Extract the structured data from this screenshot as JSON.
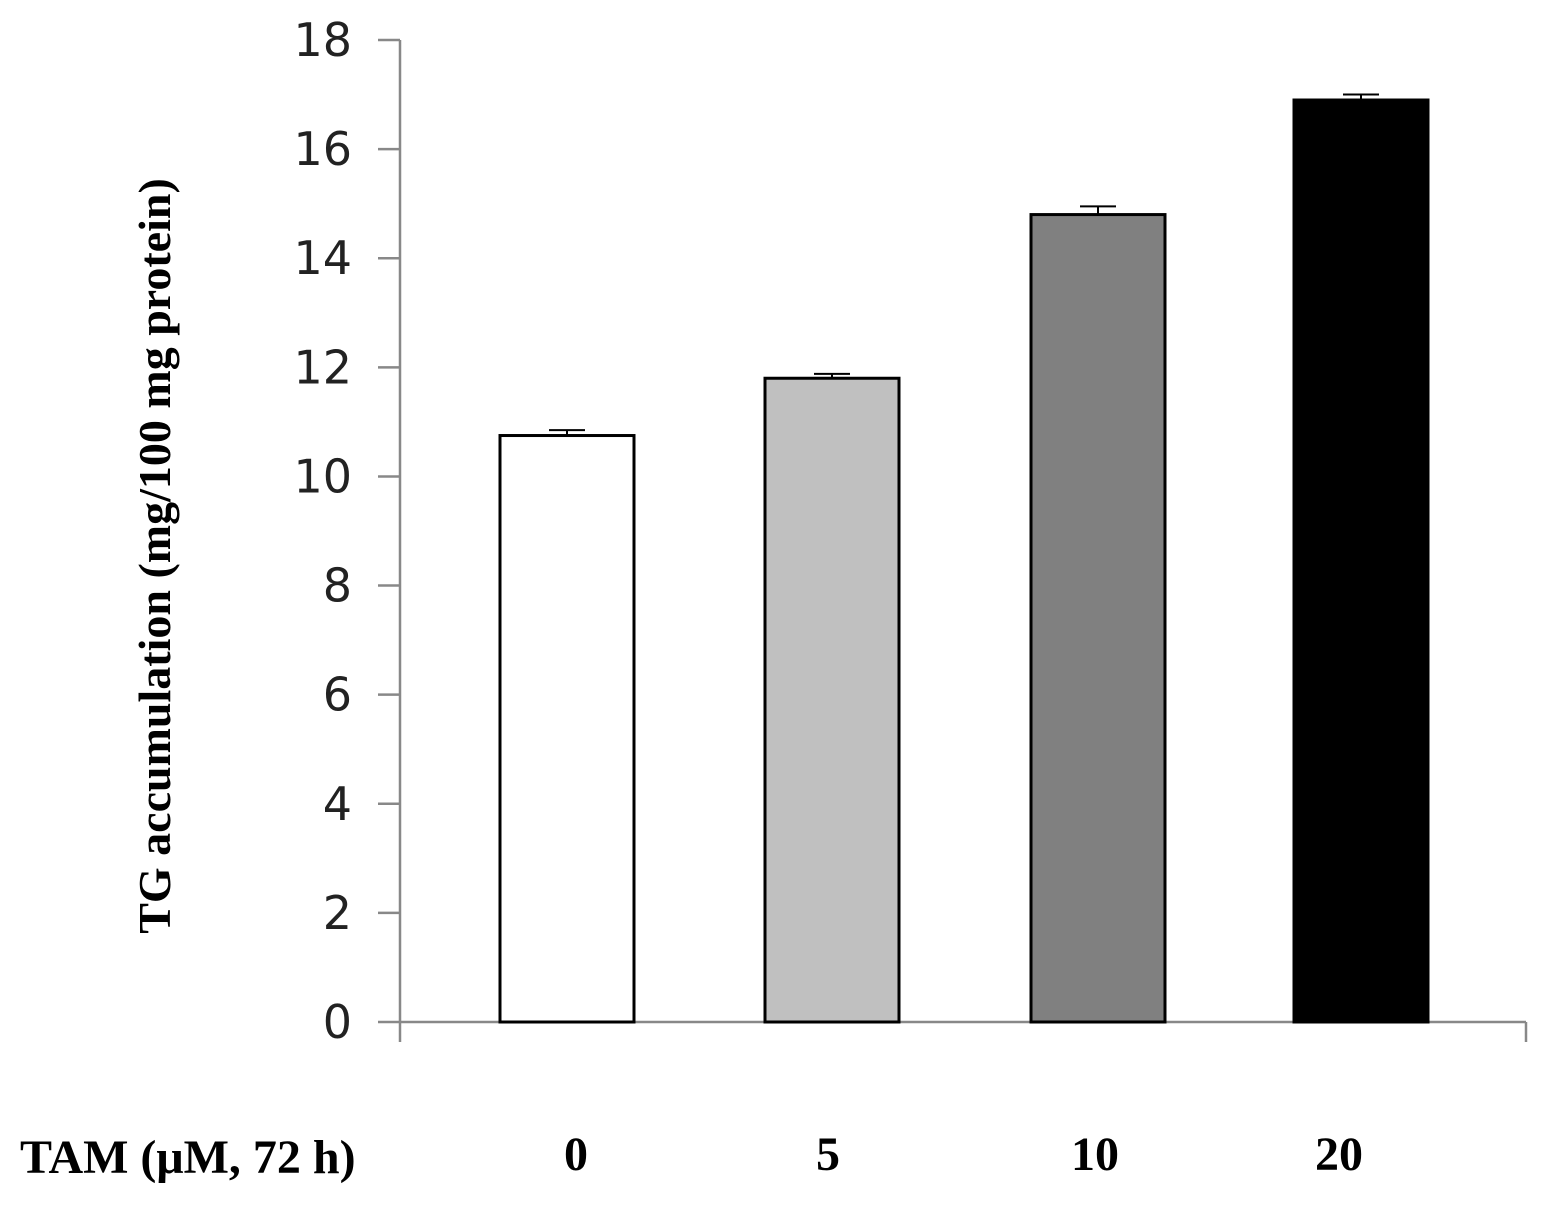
{
  "chart_data": {
    "type": "bar",
    "title": "",
    "xlabel": "TAM (μM, 72 h)",
    "ylabel": "TG accumulation (mg/100 mg protein)",
    "categories": [
      "0",
      "5",
      "10",
      "20"
    ],
    "values": [
      10.75,
      11.8,
      14.8,
      16.9
    ],
    "errors": [
      0.1,
      0.08,
      0.15,
      0.1
    ],
    "bar_colors": [
      "#ffffff",
      "#c0c0c0",
      "#808080",
      "#000000"
    ],
    "ylim": [
      0,
      18
    ],
    "yticks": [
      0,
      2,
      4,
      6,
      8,
      10,
      12,
      14,
      16,
      18
    ],
    "grid": false,
    "legend": "none"
  }
}
